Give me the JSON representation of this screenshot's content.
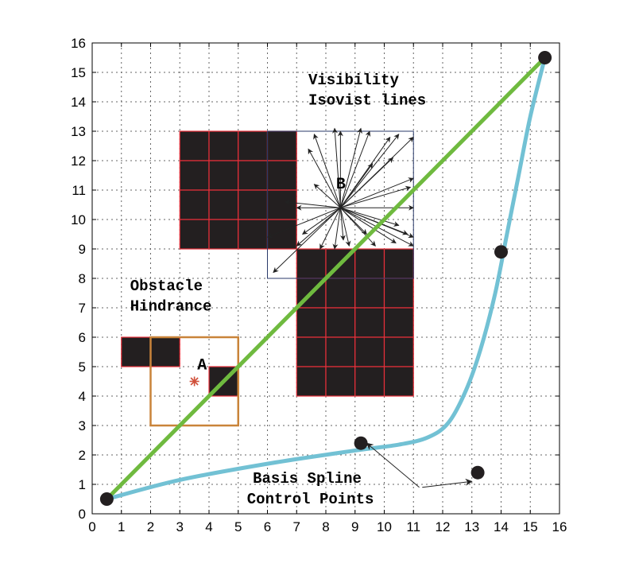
{
  "chart_data": {
    "type": "diagram",
    "xlim": [
      0,
      16
    ],
    "ylim": [
      0,
      16
    ],
    "xticks": [
      "0",
      "1",
      "2",
      "3",
      "4",
      "5",
      "6",
      "7",
      "8",
      "9",
      "10",
      "11",
      "12",
      "13",
      "14",
      "15",
      "16"
    ],
    "yticks": [
      "0",
      "1",
      "2",
      "3",
      "4",
      "5",
      "6",
      "7",
      "8",
      "9",
      "10",
      "11",
      "12",
      "13",
      "14",
      "15",
      "16"
    ],
    "grid": true,
    "obstacle_cells": [
      [
        1,
        5
      ],
      [
        2,
        5
      ],
      [
        4,
        4
      ],
      [
        3,
        12
      ],
      [
        4,
        12
      ],
      [
        5,
        12
      ],
      [
        6,
        12
      ],
      [
        3,
        11
      ],
      [
        4,
        11
      ],
      [
        5,
        11
      ],
      [
        6,
        11
      ],
      [
        3,
        10
      ],
      [
        4,
        10
      ],
      [
        5,
        10
      ],
      [
        6,
        10
      ],
      [
        3,
        9
      ],
      [
        4,
        9
      ],
      [
        5,
        9
      ],
      [
        6,
        9
      ],
      [
        7,
        8
      ],
      [
        8,
        8
      ],
      [
        9,
        8
      ],
      [
        10,
        8
      ],
      [
        7,
        7
      ],
      [
        8,
        7
      ],
      [
        9,
        7
      ],
      [
        10,
        7
      ],
      [
        7,
        6
      ],
      [
        8,
        6
      ],
      [
        9,
        6
      ],
      [
        10,
        6
      ],
      [
        7,
        5
      ],
      [
        8,
        5
      ],
      [
        9,
        5
      ],
      [
        10,
        5
      ],
      [
        7,
        4
      ],
      [
        8,
        4
      ],
      [
        9,
        4
      ],
      [
        10,
        4
      ]
    ],
    "green_path": [
      [
        0.5,
        0.5
      ],
      [
        15.5,
        15.5
      ]
    ],
    "bspline_control_points": [
      [
        0.5,
        0.5
      ],
      [
        9.2,
        2.4
      ],
      [
        13.2,
        1.4
      ],
      [
        14,
        8.9
      ],
      [
        15.5,
        15.5
      ]
    ],
    "blue_curve": [
      [
        0.5,
        0.5
      ],
      [
        3,
        1.15
      ],
      [
        6,
        1.7
      ],
      [
        9,
        2.15
      ],
      [
        10.5,
        2.35
      ],
      [
        11.5,
        2.6
      ],
      [
        12.2,
        3.1
      ],
      [
        12.8,
        4.2
      ],
      [
        13.3,
        5.6
      ],
      [
        13.8,
        7.5
      ],
      [
        14.2,
        9.5
      ],
      [
        14.6,
        11.5
      ],
      [
        15,
        13.5
      ],
      [
        15.5,
        15.5
      ]
    ],
    "point_a": {
      "label": "A",
      "x": 3.5,
      "y": 4.5,
      "box": [
        2,
        3,
        5,
        6
      ]
    },
    "point_b": {
      "label": "B",
      "x": 8.5,
      "y": 10.4,
      "box": [
        6,
        8,
        11,
        13
      ]
    },
    "isovist_rays": [
      [
        8.5,
        13
      ],
      [
        9.5,
        13
      ],
      [
        10.5,
        12.9
      ],
      [
        11,
        12.8
      ],
      [
        11,
        11.4
      ],
      [
        11,
        10.4
      ],
      [
        11,
        9.4
      ],
      [
        11,
        9.1
      ],
      [
        10.4,
        9.2
      ],
      [
        9.7,
        9.1
      ],
      [
        8.8,
        9.1
      ],
      [
        8.3,
        9
      ],
      [
        7.8,
        9
      ],
      [
        7,
        9.1
      ],
      [
        6,
        9.4
      ],
      [
        6.2,
        8.2
      ],
      [
        7.4,
        12.4
      ],
      [
        7.6,
        12.9
      ],
      [
        8.3,
        13.1
      ],
      [
        9.2,
        13.1
      ],
      [
        10.3,
        12.1
      ],
      [
        10.9,
        11.1
      ],
      [
        10.5,
        9.8
      ],
      [
        10.8,
        9.5
      ],
      [
        9.4,
        9.5
      ],
      [
        8.6,
        9.3
      ],
      [
        7.2,
        9.5
      ],
      [
        7,
        10.4
      ],
      [
        6.6,
        10.6
      ],
      [
        7.6,
        11.2
      ],
      [
        9.6,
        11.9
      ],
      [
        10.2,
        12.8
      ]
    ],
    "annotations": [
      {
        "text": "Visibility",
        "x": 7.4,
        "y": 14.6
      },
      {
        "text": "Isovist lines",
        "x": 7.4,
        "y": 13.9
      },
      {
        "text": "Obstacle",
        "x": 1.3,
        "y": 7.6
      },
      {
        "text": "Hindrance",
        "x": 1.3,
        "y": 6.9
      },
      {
        "text": "Basis Spline",
        "x": 5.5,
        "y": 1.05
      },
      {
        "text": "Control Points",
        "x": 5.3,
        "y": 0.35
      }
    ],
    "pointer_arrows": [
      {
        "from": [
          11.2,
          0.9
        ],
        "to": [
          9.4,
          2.4
        ]
      },
      {
        "from": [
          11.3,
          0.9
        ],
        "to": [
          13.0,
          1.1
        ]
      }
    ],
    "colors": {
      "green_path": "#6fba3f",
      "blue_curve": "#72c1d4",
      "obstacle_fill": "#231f20",
      "obstacle_edge": "#e8303a",
      "box": "#c9843a",
      "box_b": "#2a3a6a",
      "grid": "#666666",
      "star": "#d0503a"
    }
  }
}
